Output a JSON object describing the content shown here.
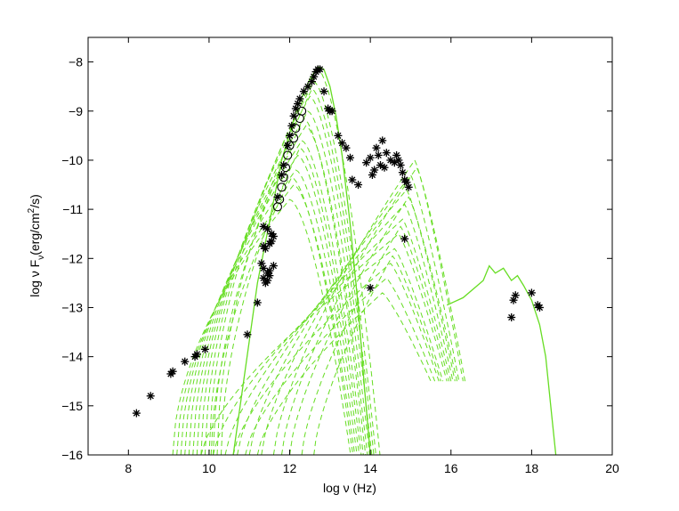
{
  "chart_data": {
    "type": "scatter",
    "title": "",
    "xlabel": "log ν (Hz)",
    "ylabel": "log ν Fν (erg/cm²/s)",
    "ylabel_parts": {
      "main": "log ν F",
      "sub": "ν",
      "unit_open": "(erg/cm",
      "sup": "2",
      "unit_close": "/s)"
    },
    "xlim": [
      7,
      20
    ],
    "ylim": [
      -16,
      -7.5
    ],
    "x_ticks": [
      8,
      10,
      12,
      14,
      16,
      18,
      20
    ],
    "y_ticks": [
      -8,
      -9,
      -10,
      -11,
      -12,
      -13,
      -14,
      -15,
      -16
    ],
    "grid": false,
    "legend": "none",
    "colors": {
      "model": "#66dd22",
      "data": "#000000"
    },
    "series": [
      {
        "kind": "asterisk",
        "x": [
          8.2,
          8.55,
          9.05,
          9.1,
          9.4,
          9.65,
          9.7,
          9.9,
          10.95,
          11.2,
          11.35,
          11.45,
          11.55,
          11.6,
          11.35,
          11.4,
          11.5,
          11.55,
          11.3,
          11.35,
          11.45,
          11.5,
          11.6,
          11.35,
          11.4,
          11.45,
          11.5,
          11.7,
          11.8,
          11.85,
          11.95,
          12.0,
          12.05,
          12.1,
          12.15,
          12.2,
          12.25,
          12.35,
          12.45,
          12.55,
          12.6,
          12.65,
          12.7,
          12.75,
          12.85,
          12.95,
          13.0,
          13.05,
          13.2,
          13.3,
          13.4,
          13.5,
          13.55,
          13.7,
          13.9,
          14.0,
          14.05,
          14.1,
          14.15,
          14.2,
          14.25,
          14.3,
          14.35,
          14.4,
          14.5,
          14.6,
          14.65,
          14.7,
          14.75,
          14.8,
          14.85,
          14.9,
          14.95,
          14.85,
          14.0,
          17.5,
          17.55,
          17.6,
          18.0,
          18.15,
          18.2
        ],
        "y": [
          -15.15,
          -14.8,
          -14.35,
          -14.3,
          -14.1,
          -14.0,
          -13.95,
          -13.85,
          -13.55,
          -12.9,
          -11.35,
          -11.4,
          -11.5,
          -11.55,
          -11.75,
          -11.8,
          -11.7,
          -11.65,
          -12.1,
          -12.2,
          -12.3,
          -12.25,
          -12.15,
          -12.4,
          -12.5,
          -12.45,
          -12.35,
          -10.75,
          -10.3,
          -10.1,
          -9.7,
          -9.5,
          -9.3,
          -9.1,
          -8.95,
          -8.85,
          -8.75,
          -8.6,
          -8.5,
          -8.4,
          -8.3,
          -8.2,
          -8.15,
          -8.15,
          -8.6,
          -8.95,
          -9.0,
          -9.0,
          -9.5,
          -9.65,
          -9.75,
          -9.95,
          -10.4,
          -10.5,
          -10.05,
          -9.95,
          -10.3,
          -10.2,
          -9.75,
          -9.9,
          -10.1,
          -9.6,
          -10.15,
          -9.85,
          -10.0,
          -10.05,
          -9.9,
          -10.0,
          -10.1,
          -10.25,
          -10.4,
          -10.45,
          -10.55,
          -11.6,
          -12.6,
          -13.2,
          -12.85,
          -12.75,
          -12.7,
          -12.95,
          -13.0
        ]
      },
      {
        "kind": "open-circle",
        "x": [
          11.7,
          11.75,
          11.8,
          11.85,
          11.9,
          11.95,
          12.0,
          12.1,
          12.15,
          12.25,
          12.3
        ],
        "y": [
          -10.95,
          -10.8,
          -10.55,
          -10.35,
          -10.15,
          -9.9,
          -9.7,
          -9.55,
          -9.35,
          -9.15,
          -9.0
        ]
      },
      {
        "kind": "solid-line",
        "name": "",
        "x": [
          10.6,
          11.2,
          11.8,
          12.2,
          12.5,
          12.7,
          12.85,
          13.0,
          13.15,
          13.3,
          13.5,
          13.7,
          13.85,
          14.0
        ],
        "y": [
          -16.0,
          -12.5,
          -10.0,
          -8.9,
          -8.35,
          -8.1,
          -8.15,
          -8.5,
          -9.1,
          -9.9,
          -11.3,
          -13.0,
          -14.6,
          -16.0
        ]
      },
      {
        "kind": "solid-line",
        "name": "",
        "x": [
          15.9,
          16.3,
          16.8,
          16.95,
          17.1,
          17.3,
          17.5,
          17.65,
          17.8,
          18.0,
          18.2,
          18.35,
          18.5,
          18.6
        ],
        "y": [
          -12.95,
          -12.8,
          -12.45,
          -12.15,
          -12.3,
          -12.2,
          -12.45,
          -12.35,
          -12.55,
          -12.85,
          -13.35,
          -14.0,
          -15.2,
          -16.0
        ]
      }
    ],
    "model_fan": {
      "kind": "dashed-lines",
      "count": 14,
      "sync_start_x": [
        10.0,
        9.9,
        9.8,
        9.7,
        9.6,
        9.5,
        9.4,
        9.3,
        9.2,
        9.1,
        10.2,
        10.1,
        10.3,
        10.05
      ],
      "sync_peak_x": [
        12.7,
        12.6,
        12.5,
        12.45,
        12.4,
        12.3,
        12.2,
        12.15,
        12.1,
        12.0,
        12.55,
        12.35,
        12.25,
        12.05
      ],
      "sync_peak_y": [
        -8.15,
        -8.4,
        -8.7,
        -9.0,
        -9.3,
        -9.6,
        -9.9,
        -10.2,
        -10.5,
        -10.8,
        -8.55,
        -9.15,
        -9.75,
        -10.35
      ],
      "ssc_start_x": [
        11.6,
        11.3,
        11.0,
        10.7,
        10.4,
        10.1,
        9.8,
        10.6,
        10.9,
        11.2,
        11.8,
        12.0,
        12.3,
        12.6
      ],
      "ssc_peak_x": [
        15.1,
        15.0,
        14.9,
        14.85,
        14.8,
        14.7,
        14.6,
        14.5,
        14.4,
        14.3,
        15.15,
        14.95,
        14.75,
        14.55
      ],
      "ssc_peak_y": [
        -10.0,
        -10.3,
        -10.6,
        -10.9,
        -11.2,
        -11.5,
        -11.8,
        -12.1,
        -12.4,
        -12.7,
        -10.15,
        -10.75,
        -11.35,
        -11.95
      ]
    }
  }
}
